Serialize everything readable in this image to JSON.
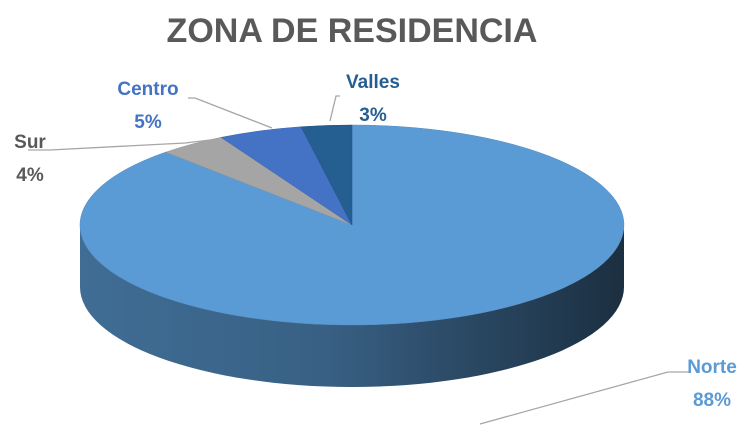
{
  "chart_data": {
    "type": "pie",
    "title": "ZONA DE RESIDENCIA",
    "categories": [
      "Norte",
      "Sur",
      "Centro",
      "Valles"
    ],
    "values": [
      88,
      4,
      5,
      3
    ],
    "value_labels": [
      "88%",
      "4%",
      "5%",
      "3%"
    ],
    "colors": [
      "#5b9bd5",
      "#a5a5a5",
      "#4472c4",
      "#255e91"
    ]
  }
}
